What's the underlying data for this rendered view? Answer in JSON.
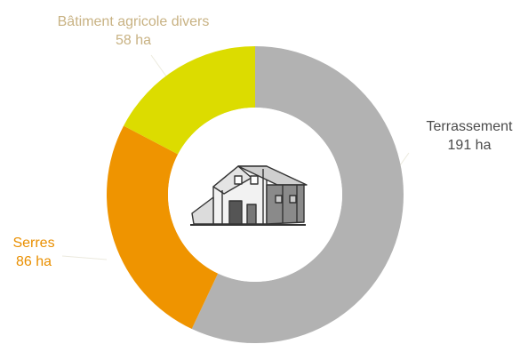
{
  "chart_data": {
    "type": "donut",
    "unit": "ha",
    "slices": [
      {
        "name": "Terrassement",
        "value": 191,
        "display": "191 ha",
        "color": "#b2b2b2",
        "label_color": "#4a4a4a"
      },
      {
        "name": "Serres",
        "value": 86,
        "display": "86 ha",
        "color": "#ef9400",
        "label_color": "#e98f00"
      },
      {
        "name": "Bâtiment agricole divers",
        "value": 58,
        "display": "58 ha",
        "color": "#dcdc00",
        "label_color": "#c8b283"
      }
    ],
    "center_icon": "barn-icon",
    "leader_color": "#ebe9dd"
  }
}
